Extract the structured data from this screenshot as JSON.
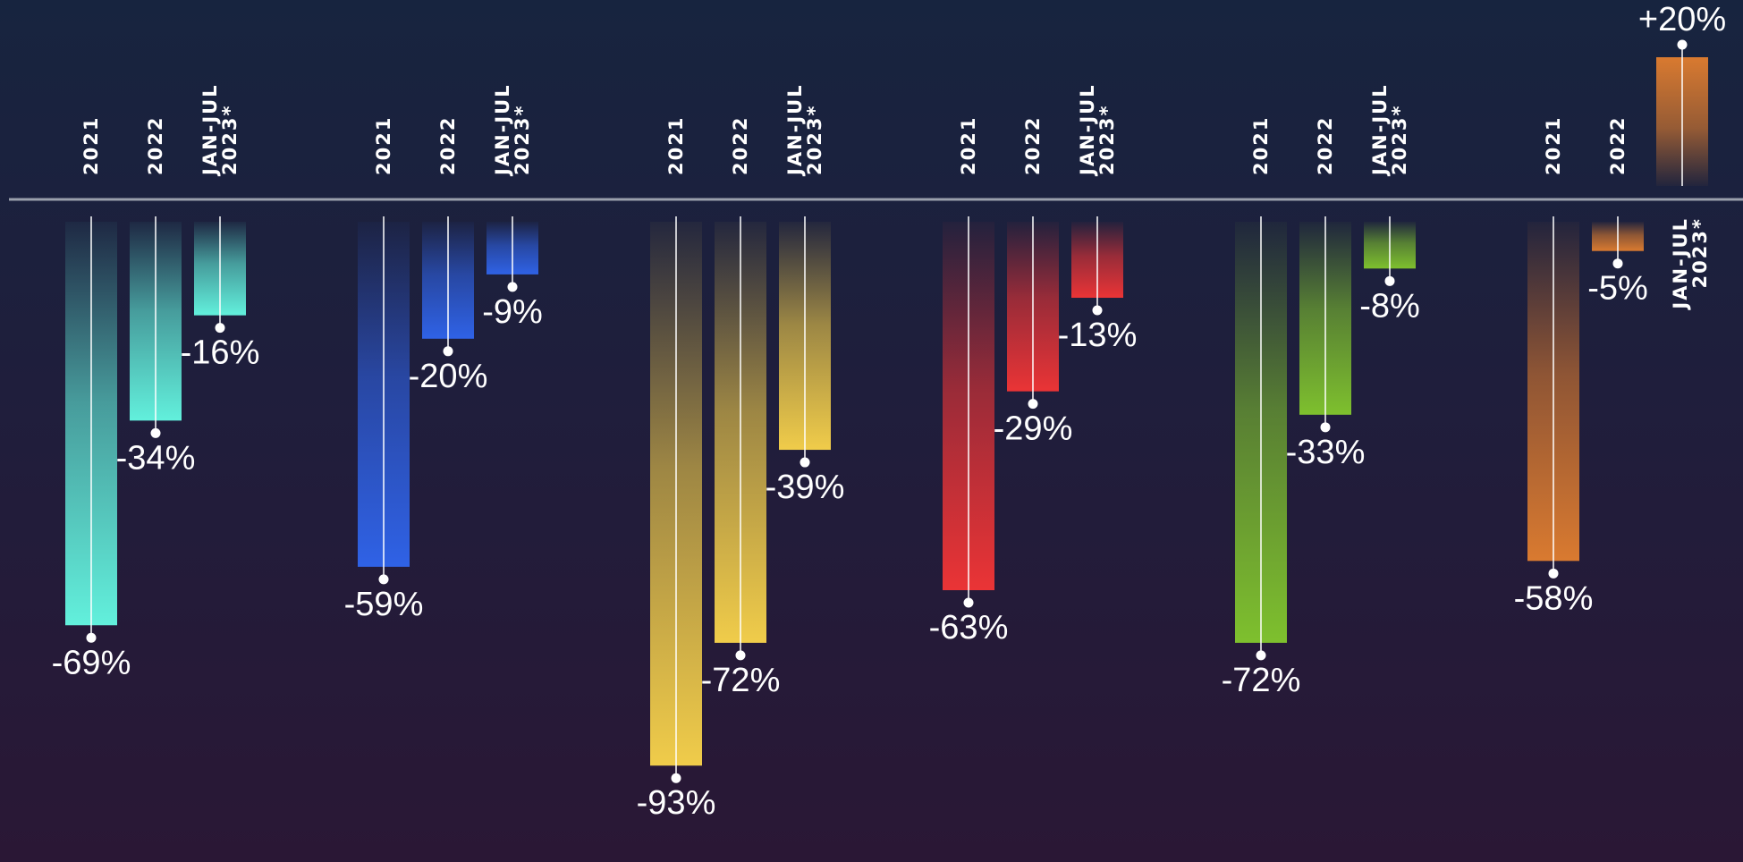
{
  "chart_data": {
    "type": "bar",
    "categories": [
      "2021",
      "2022",
      "JAN-JUL 2023*"
    ],
    "category_lines": [
      [
        "2021"
      ],
      [
        "2022"
      ],
      [
        "JAN-JUL",
        "2023*"
      ]
    ],
    "unit": "%",
    "groups": [
      {
        "color": "#62f0dc",
        "values": [
          -69,
          -34,
          -16
        ],
        "labels": [
          "-69%",
          "-34%",
          "-16%"
        ]
      },
      {
        "color": "#2f62e6",
        "values": [
          -59,
          -20,
          -9
        ],
        "labels": [
          "-59%",
          "-20%",
          "-9%"
        ]
      },
      {
        "color": "#f0cc4a",
        "values": [
          -93,
          -72,
          -39
        ],
        "labels": [
          "-93%",
          "-72%",
          "-39%"
        ]
      },
      {
        "color": "#ea3436",
        "values": [
          -63,
          -29,
          -13
        ],
        "labels": [
          "-63%",
          "-29%",
          "-13%"
        ]
      },
      {
        "color": "#7ec02e",
        "values": [
          -72,
          -33,
          -8
        ],
        "labels": [
          "-72%",
          "-33%",
          "-8%"
        ]
      },
      {
        "color": "#d97a30",
        "values": [
          -58,
          -5,
          20
        ],
        "labels": [
          "-58%",
          "-5%",
          "+20%"
        ]
      }
    ],
    "baseline": 0,
    "ylim": [
      -95,
      22
    ],
    "grid": false,
    "legend": "none"
  }
}
